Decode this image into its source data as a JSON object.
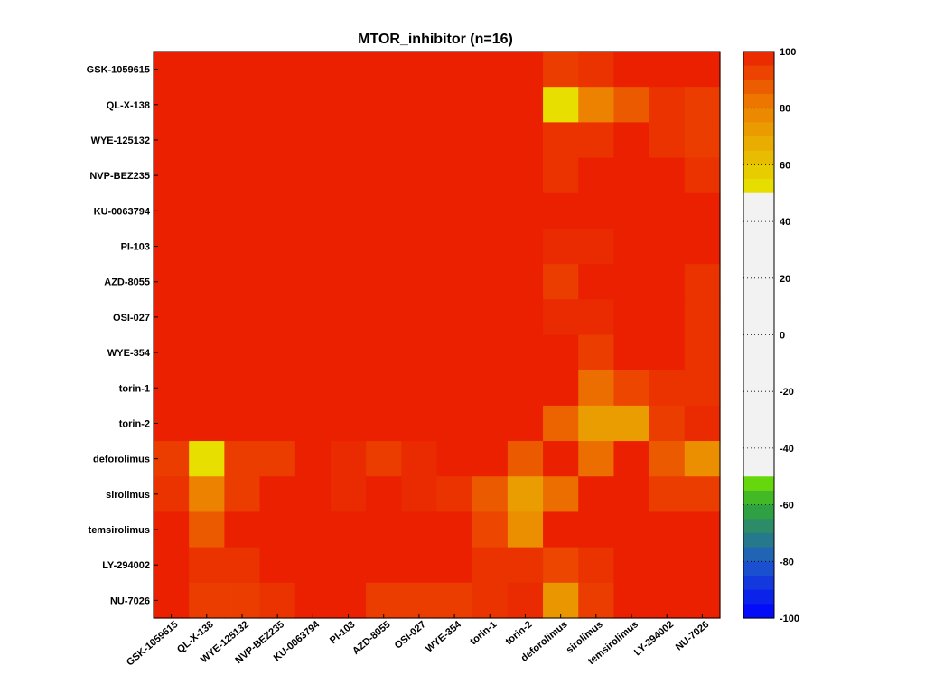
{
  "chart_data": {
    "type": "heatmap",
    "title": "MTOR_inhibitor (n=16)",
    "rows": [
      "GSK-1059615",
      "QL-X-138",
      "WYE-125132",
      "NVP-BEZ235",
      "KU-0063794",
      "PI-103",
      "AZD-8055",
      "OSI-027",
      "WYE-354",
      "torin-1",
      "torin-2",
      "deforolimus",
      "sirolimus",
      "temsirolimus",
      "LY-294002",
      "NU-7026"
    ],
    "columns": [
      "GSK-1059615",
      "QL-X-138",
      "WYE-125132",
      "NVP-BEZ235",
      "KU-0063794",
      "PI-103",
      "AZD-8055",
      "OSI-027",
      "WYE-354",
      "torin-1",
      "torin-2",
      "deforolimus",
      "sirolimus",
      "temsirolimus",
      "LY-294002",
      "NU-7026"
    ],
    "values": [
      [
        100,
        100,
        100,
        100,
        100,
        100,
        100,
        100,
        100,
        100,
        100,
        94,
        96,
        100,
        100,
        100
      ],
      [
        100,
        100,
        100,
        100,
        100,
        100,
        100,
        100,
        100,
        100,
        100,
        52,
        80,
        88,
        96,
        94
      ],
      [
        100,
        100,
        100,
        100,
        100,
        100,
        100,
        100,
        100,
        100,
        100,
        96,
        96,
        100,
        96,
        94
      ],
      [
        100,
        100,
        100,
        100,
        100,
        100,
        100,
        100,
        100,
        100,
        100,
        96,
        100,
        100,
        100,
        96
      ],
      [
        100,
        100,
        100,
        100,
        100,
        100,
        100,
        100,
        100,
        100,
        100,
        100,
        100,
        100,
        100,
        100
      ],
      [
        100,
        100,
        100,
        100,
        100,
        100,
        100,
        100,
        100,
        100,
        100,
        98,
        98,
        100,
        100,
        100
      ],
      [
        100,
        100,
        100,
        100,
        100,
        100,
        100,
        100,
        100,
        100,
        100,
        94,
        100,
        100,
        100,
        96
      ],
      [
        100,
        100,
        100,
        100,
        100,
        100,
        100,
        100,
        100,
        100,
        100,
        98,
        98,
        100,
        100,
        96
      ],
      [
        100,
        100,
        100,
        100,
        100,
        100,
        100,
        100,
        100,
        100,
        100,
        100,
        94,
        100,
        100,
        96
      ],
      [
        100,
        100,
        100,
        100,
        100,
        100,
        100,
        100,
        100,
        100,
        100,
        100,
        84,
        92,
        96,
        96
      ],
      [
        100,
        100,
        100,
        100,
        100,
        100,
        100,
        100,
        100,
        100,
        100,
        86,
        72,
        72,
        94,
        98
      ],
      [
        94,
        52,
        94,
        94,
        100,
        98,
        94,
        98,
        100,
        100,
        88,
        100,
        84,
        100,
        88,
        76
      ],
      [
        96,
        80,
        94,
        100,
        100,
        98,
        100,
        98,
        96,
        88,
        72,
        84,
        100,
        100,
        94,
        94
      ],
      [
        100,
        88,
        100,
        100,
        100,
        100,
        100,
        100,
        100,
        92,
        76,
        100,
        100,
        100,
        100,
        100
      ],
      [
        100,
        96,
        96,
        100,
        100,
        100,
        100,
        100,
        100,
        96,
        96,
        92,
        96,
        100,
        100,
        100
      ],
      [
        100,
        94,
        94,
        96,
        100,
        100,
        94,
        94,
        94,
        96,
        98,
        74,
        94,
        100,
        100,
        100
      ]
    ],
    "colorbar": {
      "range": [
        -100,
        100
      ],
      "ticks": [
        100,
        80,
        60,
        40,
        20,
        0,
        -20,
        -40,
        -60,
        -80,
        -100
      ]
    }
  }
}
